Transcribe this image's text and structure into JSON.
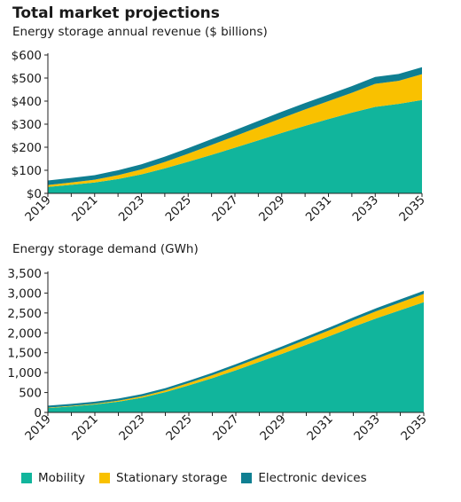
{
  "header": {
    "title": "Total market projections"
  },
  "colors": {
    "Mobility": "#11b59c",
    "Stationary storage": "#f9c100",
    "Electronic devices": "#0f7f92"
  },
  "chart_data": [
    {
      "type": "area",
      "stacked": true,
      "title": "Energy storage annual revenue ($ billions)",
      "x": [
        2019,
        2020,
        2021,
        2022,
        2023,
        2024,
        2025,
        2026,
        2027,
        2028,
        2029,
        2030,
        2031,
        2032,
        2033,
        2034,
        2035
      ],
      "x_tick_labels": [
        "2019",
        "2021",
        "2023",
        "2025",
        "2027",
        "2029",
        "2031",
        "2033",
        "2035"
      ],
      "ylim": [
        0,
        600
      ],
      "y_tick_labels": [
        "$0",
        "$100",
        "$200",
        "$300",
        "$400",
        "$500",
        "$600"
      ],
      "y_ticks": [
        0,
        100,
        200,
        300,
        400,
        500,
        600
      ],
      "series": [
        {
          "name": "Mobility",
          "values": [
            28,
            37,
            47,
            62,
            82,
            108,
            137,
            167,
            198,
            230,
            262,
            293,
            322,
            350,
            375,
            388,
            405
          ]
        },
        {
          "name": "Stationary storage",
          "values": [
            8,
            10,
            12,
            17,
            22,
            28,
            35,
            43,
            50,
            57,
            64,
            71,
            78,
            86,
            100,
            100,
            112
          ]
        },
        {
          "name": "Electronic devices",
          "values": [
            20,
            20,
            20,
            21,
            22,
            23,
            24,
            25,
            26,
            27,
            28,
            28,
            28,
            29,
            30,
            30,
            30
          ]
        }
      ],
      "legend": "bottom"
    },
    {
      "type": "area",
      "stacked": true,
      "title": "Energy storage demand (GWh)",
      "x": [
        2019,
        2020,
        2021,
        2022,
        2023,
        2024,
        2025,
        2026,
        2027,
        2028,
        2029,
        2030,
        2031,
        2032,
        2033,
        2034,
        2035
      ],
      "x_tick_labels": [
        "2019",
        "2021",
        "2023",
        "2025",
        "2027",
        "2029",
        "2031",
        "2033",
        "2035"
      ],
      "ylim": [
        0,
        3500
      ],
      "y_tick_labels": [
        "0",
        "500",
        "1,000",
        "1,500",
        "2,000",
        "2,500",
        "3,000",
        "3,500"
      ],
      "y_ticks": [
        0,
        500,
        1000,
        1500,
        2000,
        2500,
        3000,
        3500
      ],
      "series": [
        {
          "name": "Mobility",
          "values": [
            110,
            150,
            200,
            270,
            370,
            510,
            680,
            860,
            1060,
            1270,
            1480,
            1700,
            1920,
            2150,
            2370,
            2570,
            2770
          ]
        },
        {
          "name": "Stationary storage",
          "values": [
            10,
            14,
            18,
            25,
            35,
            45,
            60,
            75,
            90,
            105,
            120,
            135,
            150,
            165,
            180,
            195,
            210
          ]
        },
        {
          "name": "Electronic devices",
          "values": [
            50,
            51,
            52,
            53,
            54,
            56,
            58,
            60,
            62,
            64,
            66,
            68,
            70,
            72,
            74,
            76,
            78
          ]
        }
      ],
      "legend": "bottom"
    }
  ],
  "legend": {
    "items": [
      "Mobility",
      "Stationary storage",
      "Electronic devices"
    ]
  }
}
